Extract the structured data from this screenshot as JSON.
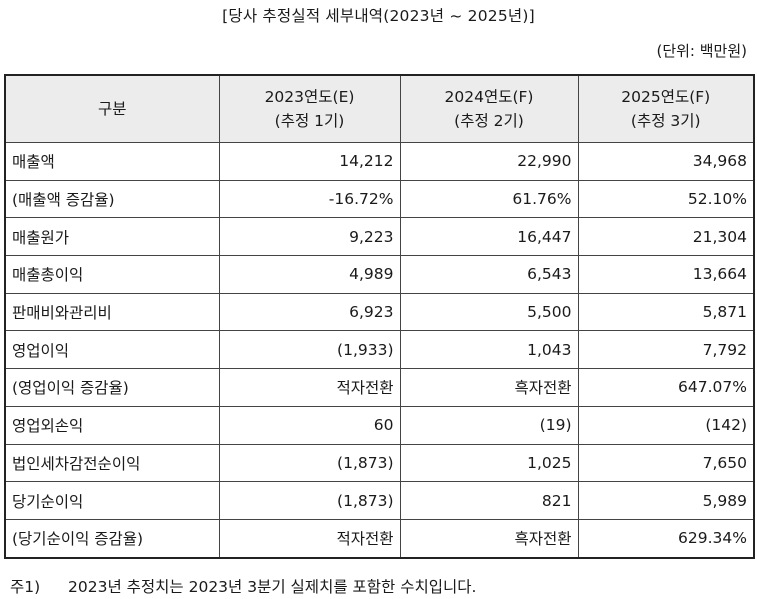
{
  "title": "[당사 추정실적 세부내역(2023년 ~ 2025년)]",
  "unit": "(단위: 백만원)",
  "headers": [
    {
      "line1": "구분",
      "line2": ""
    },
    {
      "line1": "2023연도(E)",
      "line2": "(추정 1기)"
    },
    {
      "line1": "2024연도(F)",
      "line2": "(추정 2기)"
    },
    {
      "line1": "2025연도(F)",
      "line2": "(추정 3기)"
    }
  ],
  "rows": [
    {
      "label": "매출액",
      "v2023": "14,212",
      "v2024": "22,990",
      "v2025": "34,968"
    },
    {
      "label": "(매출액 증감율)",
      "v2023": "-16.72%",
      "v2024": "61.76%",
      "v2025": "52.10%"
    },
    {
      "label": "매출원가",
      "v2023": "9,223",
      "v2024": "16,447",
      "v2025": "21,304"
    },
    {
      "label": "매출총이익",
      "v2023": "4,989",
      "v2024": "6,543",
      "v2025": "13,664"
    },
    {
      "label": "판매비와관리비",
      "v2023": "6,923",
      "v2024": "5,500",
      "v2025": "5,871"
    },
    {
      "label": "영업이익",
      "v2023": "(1,933)",
      "v2024": "1,043",
      "v2025": "7,792"
    },
    {
      "label": "(영업이익 증감율)",
      "v2023": "적자전환",
      "v2024": "흑자전환",
      "v2025": "647.07%"
    },
    {
      "label": "영업외손익",
      "v2023": "60",
      "v2024": "(19)",
      "v2025": "(142)"
    },
    {
      "label": "법인세차감전순이익",
      "v2023": "(1,873)",
      "v2024": "1,025",
      "v2025": "7,650"
    },
    {
      "label": "당기순이익",
      "v2023": "(1,873)",
      "v2024": "821",
      "v2025": "5,989"
    },
    {
      "label": "(당기순이익 증감율)",
      "v2023": "적자전환",
      "v2024": "흑자전환",
      "v2025": "629.34%"
    }
  ],
  "note": {
    "tag": "주1)",
    "text": "2023년 추정치는 2023년 3분기 실제치를 포함한 수치입니다."
  },
  "colors": {
    "header_bg": "#ececec",
    "border": "#444444"
  }
}
